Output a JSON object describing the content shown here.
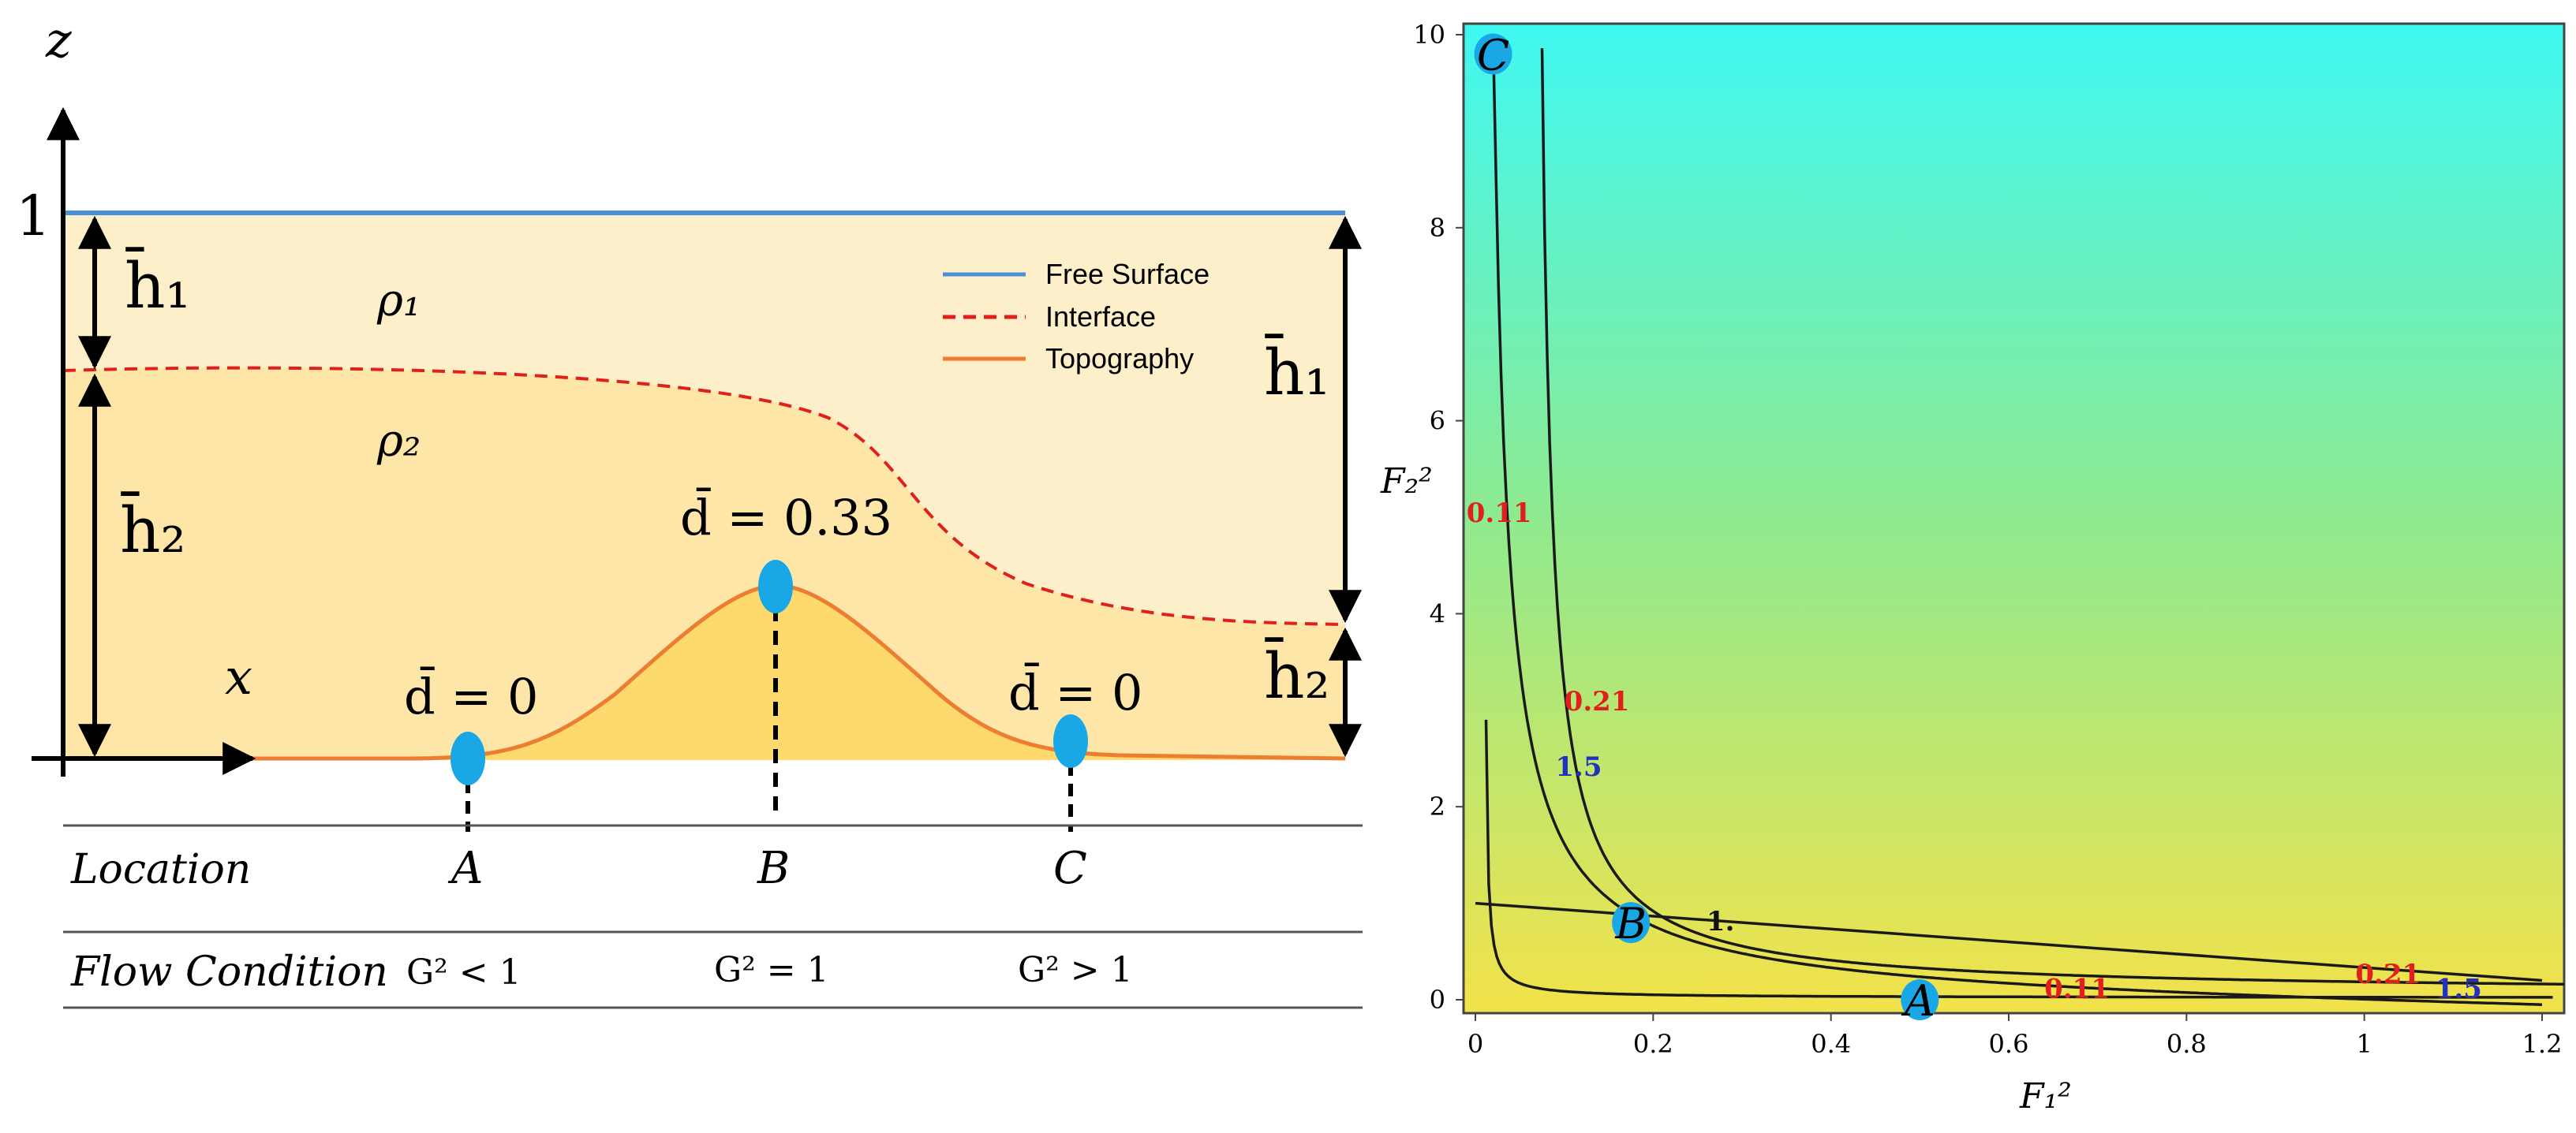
{
  "left_panel": {
    "axis_z": "z",
    "axis_x": "x",
    "level_one": "1",
    "h1_left": "h̄₁",
    "h2_left": "h̄₂",
    "h1_right": "h̄₁",
    "h2_right": "h̄₂",
    "rho1": "ρ₁",
    "rho2": "ρ₂",
    "d_crest": "d̄ = 0.33",
    "d_a": "d̄ = 0",
    "d_c": "d̄ = 0",
    "legend": [
      {
        "label": "Free Surface",
        "color": "#4a90d9",
        "style": "solid"
      },
      {
        "label": "Interface",
        "color": "#e0201c",
        "style": "dashed"
      },
      {
        "label": "Topography",
        "color": "#ed7d31",
        "style": "solid"
      }
    ],
    "table": {
      "row1_label": "Location",
      "row2_label": "Flow Condition",
      "points": [
        {
          "location": "A",
          "condition": "G² < 1"
        },
        {
          "location": "B",
          "condition": "G² = 1"
        },
        {
          "location": "C",
          "condition": "G² > 1"
        }
      ]
    },
    "colors": {
      "upper_layer": "#fdefc9",
      "lower_layer": "#fde6a8",
      "bump": "#fdd96e",
      "marker": "#1aa7e6"
    }
  },
  "chart_data": {
    "type": "contour",
    "xlabel": "F₁²",
    "ylabel": "F₂²",
    "xlim": [
      0,
      1.2
    ],
    "ylim": [
      0,
      10
    ],
    "xticks": [
      "0",
      "0.2",
      "0.4",
      "0.6",
      "0.8",
      "1",
      "1.2"
    ],
    "yticks": [
      "0",
      "2",
      "4",
      "6",
      "8",
      "10"
    ],
    "background_gradient": {
      "bottom": "#f3e24a",
      "middle": "#8fea8f",
      "top": "#3ff8f2"
    },
    "contour_labels": [
      {
        "text": "0.11",
        "x": -0.01,
        "y": 4.95,
        "color": "#e0201c"
      },
      {
        "text": "0.21",
        "x": 0.1,
        "y": 3.0,
        "color": "#e0201c"
      },
      {
        "text": "1.5",
        "x": 0.09,
        "y": 2.32,
        "color": "#2233bb"
      },
      {
        "text": "1.",
        "x": 0.26,
        "y": 0.72,
        "color": "#111111"
      },
      {
        "text": "0.11",
        "x": 0.64,
        "y": 0.02,
        "color": "#e0201c"
      },
      {
        "text": "0.21",
        "x": 0.99,
        "y": 0.17,
        "color": "#e0201c"
      },
      {
        "text": "1.5",
        "x": 1.08,
        "y": 0.02,
        "color": "#2233bb"
      }
    ],
    "points": [
      {
        "label": "A",
        "x": 0.5,
        "y": 0.0
      },
      {
        "label": "B",
        "x": 0.175,
        "y": 0.8
      },
      {
        "label": "C",
        "x": 0.02,
        "y": 9.8
      }
    ]
  }
}
